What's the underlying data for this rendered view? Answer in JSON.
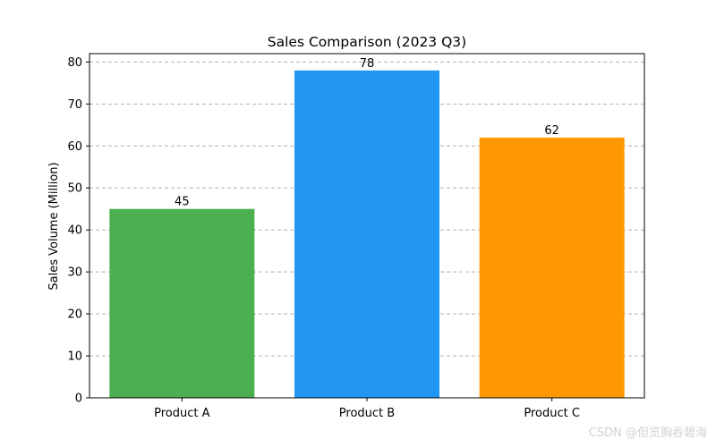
{
  "chart_data": {
    "type": "bar",
    "title": "Sales Comparison (2023 Q3)",
    "xlabel": "",
    "ylabel": "Sales Volume (Million)",
    "categories": [
      "Product A",
      "Product B",
      "Product C"
    ],
    "values": [
      45,
      78,
      62
    ],
    "colors": [
      "#4caf50",
      "#2196f3",
      "#ff9800"
    ],
    "ylim": [
      0,
      82
    ],
    "yticks": [
      0,
      10,
      20,
      30,
      40,
      50,
      60,
      70,
      80
    ],
    "grid": "y-dashed",
    "data_labels": true
  },
  "watermark": "CSDN @但览胸吞碧海"
}
